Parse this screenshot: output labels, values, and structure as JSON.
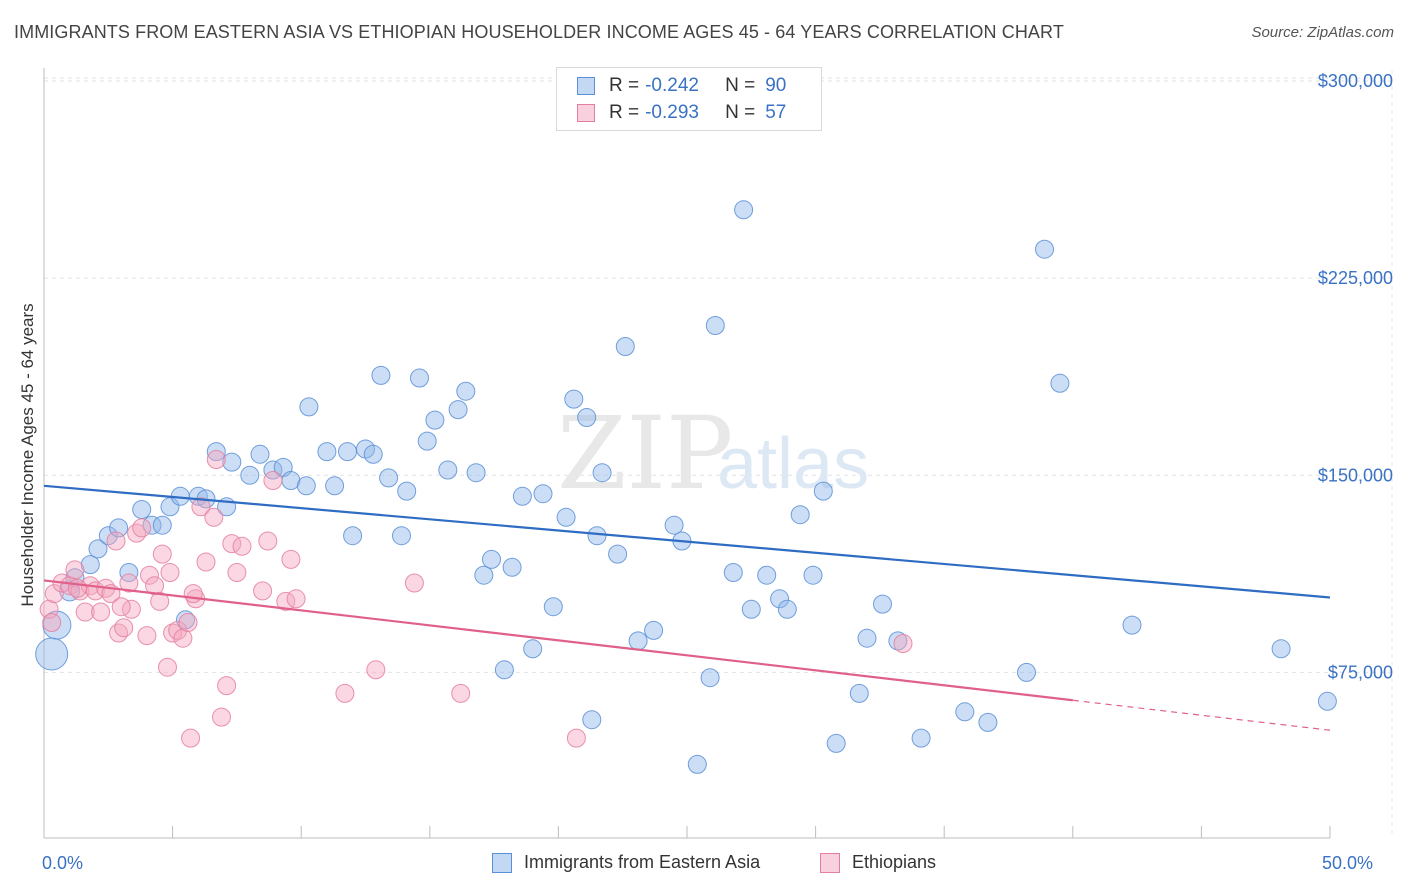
{
  "header": {
    "title": "IMMIGRANTS FROM EASTERN ASIA VS ETHIOPIAN HOUSEHOLDER INCOME AGES 45 - 64 YEARS CORRELATION CHART",
    "source": "Source: ZipAtlas.com"
  },
  "watermark": {
    "zip": "ZIP",
    "atlas": "atlas"
  },
  "stats_legend": {
    "rows": [
      {
        "r_label": "R =",
        "r_value": "-0.242",
        "n_label": "N =",
        "n_value": "90",
        "color": "#8fb5e8"
      },
      {
        "r_label": "R =",
        "r_value": "-0.293",
        "n_label": "N =",
        "n_value": "57",
        "color": "#f3a6bf"
      }
    ]
  },
  "chart_data": {
    "type": "scatter",
    "title": "IMMIGRANTS FROM EASTERN ASIA VS ETHIOPIAN HOUSEHOLDER INCOME AGES 45 - 64 YEARS CORRELATION CHART",
    "ylabel": "Householder Income Ages 45 - 64 years",
    "xlabel": "",
    "xlim": [
      0,
      50
    ],
    "ylim": [
      12000,
      308000
    ],
    "x_tick_labels": [
      "0.0%",
      "50.0%"
    ],
    "y_ticks": [
      {
        "value": 75000,
        "label": "$75,000"
      },
      {
        "value": 150000,
        "label": "$150,000"
      },
      {
        "value": 225000,
        "label": "$225,000"
      },
      {
        "value": 300000,
        "label": "$300,000"
      }
    ],
    "grid": true,
    "legend_position": "bottom",
    "series": [
      {
        "name": "Immigrants from Eastern Asia",
        "color": "#8fb5e8",
        "stroke": "#5b8fd6",
        "trend": {
          "x0": 0,
          "y0": 146000,
          "x1": 50,
          "y1": 103500,
          "color": "#2f6cc4"
        },
        "points": [
          [
            0.3,
            82000,
            16
          ],
          [
            0.5,
            93000,
            14
          ],
          [
            1.0,
            106000,
            10
          ],
          [
            1.2,
            111000,
            9
          ],
          [
            1.8,
            116000,
            9
          ],
          [
            2.1,
            122000,
            9
          ],
          [
            2.5,
            127000,
            9
          ],
          [
            2.9,
            130000,
            9
          ],
          [
            3.3,
            113000,
            9
          ],
          [
            3.8,
            137000,
            9
          ],
          [
            4.2,
            131000,
            9
          ],
          [
            4.6,
            131000,
            9
          ],
          [
            4.9,
            138000,
            9
          ],
          [
            5.3,
            142000,
            9
          ],
          [
            5.5,
            95000,
            9
          ],
          [
            6.0,
            142000,
            9
          ],
          [
            6.3,
            141000,
            9
          ],
          [
            6.7,
            159000,
            9
          ],
          [
            7.1,
            138000,
            9
          ],
          [
            7.3,
            155000,
            9
          ],
          [
            8.0,
            150000,
            9
          ],
          [
            8.4,
            158000,
            9
          ],
          [
            8.9,
            152000,
            9
          ],
          [
            9.3,
            153000,
            9
          ],
          [
            9.6,
            148000,
            9
          ],
          [
            10.2,
            146000,
            9
          ],
          [
            10.3,
            176000,
            9
          ],
          [
            11.0,
            159000,
            9
          ],
          [
            11.3,
            146000,
            9
          ],
          [
            11.8,
            159000,
            9
          ],
          [
            12.0,
            127000,
            9
          ],
          [
            12.5,
            160000,
            9
          ],
          [
            12.8,
            158000,
            9
          ],
          [
            13.1,
            188000,
            9
          ],
          [
            13.4,
            149000,
            9
          ],
          [
            13.9,
            127000,
            9
          ],
          [
            14.1,
            144000,
            9
          ],
          [
            14.6,
            187000,
            9
          ],
          [
            14.9,
            163000,
            9
          ],
          [
            15.2,
            171000,
            9
          ],
          [
            15.7,
            152000,
            9
          ],
          [
            16.1,
            175000,
            9
          ],
          [
            16.4,
            182000,
            9
          ],
          [
            16.8,
            151000,
            9
          ],
          [
            17.1,
            112000,
            9
          ],
          [
            17.4,
            118000,
            9
          ],
          [
            17.9,
            76000,
            9
          ],
          [
            18.2,
            115000,
            9
          ],
          [
            18.6,
            142000,
            9
          ],
          [
            19.0,
            84000,
            9
          ],
          [
            19.4,
            143000,
            9
          ],
          [
            19.8,
            100000,
            9
          ],
          [
            20.3,
            134000,
            9
          ],
          [
            20.6,
            179000,
            9
          ],
          [
            21.1,
            172000,
            9
          ],
          [
            21.5,
            127000,
            9
          ],
          [
            21.7,
            151000,
            9
          ],
          [
            22.3,
            120000,
            9
          ],
          [
            22.6,
            199000,
            9
          ],
          [
            23.1,
            87000,
            9
          ],
          [
            23.7,
            91000,
            9
          ],
          [
            24.5,
            131000,
            9
          ],
          [
            24.8,
            125000,
            9
          ],
          [
            25.4,
            40000,
            9
          ],
          [
            25.9,
            73000,
            9
          ],
          [
            26.1,
            207000,
            9
          ],
          [
            26.8,
            113000,
            9
          ],
          [
            27.2,
            251000,
            9
          ],
          [
            27.5,
            99000,
            9
          ],
          [
            28.1,
            112000,
            9
          ],
          [
            28.6,
            103000,
            9
          ],
          [
            28.9,
            99000,
            9
          ],
          [
            29.4,
            135000,
            9
          ],
          [
            29.9,
            112000,
            9
          ],
          [
            30.3,
            144000,
            9
          ],
          [
            30.8,
            48000,
            9
          ],
          [
            31.7,
            67000,
            9
          ],
          [
            32.0,
            88000,
            9
          ],
          [
            32.6,
            101000,
            9
          ],
          [
            33.2,
            87000,
            9
          ],
          [
            34.1,
            50000,
            9
          ],
          [
            36.7,
            56000,
            9
          ],
          [
            38.2,
            75000,
            9
          ],
          [
            38.9,
            236000,
            9
          ],
          [
            39.5,
            185000,
            9
          ],
          [
            42.3,
            93000,
            9
          ],
          [
            48.1,
            84000,
            9
          ],
          [
            49.9,
            64000,
            9
          ],
          [
            21.3,
            57000,
            9
          ],
          [
            35.8,
            60000,
            9
          ]
        ]
      },
      {
        "name": "Ethiopians",
        "color": "#f3a6bf",
        "stroke": "#e57fa0",
        "trend": {
          "x0": 0,
          "y0": 110000,
          "x1": 50,
          "y1": 53000,
          "solid_until": 40,
          "color": "#e0608a"
        },
        "points": [
          [
            0.2,
            99000,
            9
          ],
          [
            0.4,
            105000,
            9
          ],
          [
            0.7,
            109000,
            9
          ],
          [
            1.0,
            108000,
            9
          ],
          [
            1.2,
            114000,
            9
          ],
          [
            1.4,
            106000,
            9
          ],
          [
            1.6,
            98000,
            9
          ],
          [
            1.8,
            108000,
            9
          ],
          [
            2.0,
            106000,
            9
          ],
          [
            2.2,
            98000,
            9
          ],
          [
            2.4,
            107000,
            9
          ],
          [
            2.6,
            105000,
            9
          ],
          [
            2.8,
            125000,
            9
          ],
          [
            2.9,
            90000,
            9
          ],
          [
            3.1,
            92000,
            9
          ],
          [
            3.3,
            109000,
            9
          ],
          [
            3.4,
            99000,
            9
          ],
          [
            3.6,
            128000,
            9
          ],
          [
            3.8,
            130000,
            9
          ],
          [
            4.0,
            89000,
            9
          ],
          [
            4.1,
            112000,
            9
          ],
          [
            4.3,
            108000,
            9
          ],
          [
            4.5,
            102000,
            9
          ],
          [
            4.6,
            120000,
            9
          ],
          [
            4.8,
            77000,
            9
          ],
          [
            4.9,
            113000,
            9
          ],
          [
            5.0,
            90000,
            9
          ],
          [
            5.2,
            91000,
            9
          ],
          [
            5.4,
            88000,
            9
          ],
          [
            5.6,
            94000,
            9
          ],
          [
            5.7,
            50000,
            9
          ],
          [
            5.9,
            103000,
            9
          ],
          [
            6.1,
            138000,
            9
          ],
          [
            6.3,
            117000,
            9
          ],
          [
            6.6,
            134000,
            9
          ],
          [
            6.7,
            156000,
            9
          ],
          [
            6.9,
            58000,
            9
          ],
          [
            7.1,
            70000,
            9
          ],
          [
            7.3,
            124000,
            9
          ],
          [
            7.5,
            113000,
            9
          ],
          [
            7.7,
            123000,
            9
          ],
          [
            8.5,
            106000,
            9
          ],
          [
            8.7,
            125000,
            9
          ],
          [
            8.9,
            148000,
            9
          ],
          [
            9.4,
            102000,
            9
          ],
          [
            9.6,
            118000,
            9
          ],
          [
            9.8,
            103000,
            9
          ],
          [
            11.7,
            67000,
            9
          ],
          [
            12.9,
            76000,
            9
          ],
          [
            14.4,
            109000,
            9
          ],
          [
            16.2,
            67000,
            9
          ],
          [
            20.7,
            50000,
            9
          ],
          [
            33.4,
            86000,
            9
          ],
          [
            1.3,
            107000,
            9
          ],
          [
            3.0,
            100000,
            9
          ],
          [
            5.8,
            105000,
            9
          ],
          [
            0.3,
            94000,
            9
          ]
        ]
      }
    ]
  }
}
